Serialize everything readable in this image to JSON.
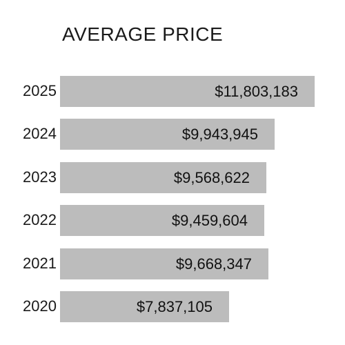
{
  "chart_data": {
    "type": "bar",
    "orientation": "horizontal",
    "title": "AVERAGE PRICE",
    "categories": [
      "2025",
      "2024",
      "2023",
      "2022",
      "2021",
      "2020"
    ],
    "values": [
      11803183,
      9943945,
      9568622,
      9459604,
      9668347,
      7837105
    ],
    "value_labels": [
      "$11,803,183",
      "$9,943,945",
      "$9,568,622",
      "$9,459,604",
      "$9,668,347",
      "$7,837,105"
    ],
    "xlim": [
      0,
      11803183
    ],
    "grid": false,
    "legend": "none",
    "bar_color": "#bcbcbc"
  }
}
